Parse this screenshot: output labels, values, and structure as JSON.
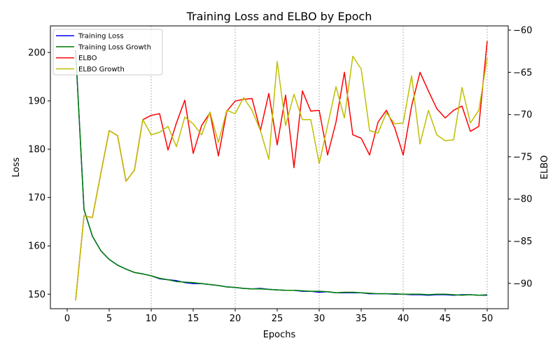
{
  "chart_data": {
    "type": "line",
    "title": "Training Loss and ELBO by Epoch",
    "xlabel": "Epochs",
    "ylabel": "Loss",
    "ylabel_right": "ELBO",
    "xlim": [
      -2.0,
      52.5
    ],
    "ylim": [
      147.0,
      205.5
    ],
    "ylim_right": [
      -93.0,
      -59.5
    ],
    "xticks": [
      0,
      5,
      10,
      15,
      20,
      25,
      30,
      35,
      40,
      45,
      50
    ],
    "yticks": [
      150,
      160,
      170,
      180,
      190,
      200
    ],
    "yticks_right": [
      -90,
      -85,
      -80,
      -75,
      -70,
      -65,
      -60
    ],
    "vgrid": [
      10,
      20,
      30,
      40,
      50
    ],
    "legend_position": "upper-left",
    "x": [
      1,
      2,
      3,
      4,
      5,
      6,
      7,
      8,
      9,
      10,
      11,
      12,
      13,
      14,
      15,
      16,
      17,
      18,
      19,
      20,
      21,
      22,
      23,
      24,
      25,
      26,
      27,
      28,
      29,
      30,
      31,
      32,
      33,
      34,
      35,
      36,
      37,
      38,
      39,
      40,
      41,
      42,
      43,
      44,
      45,
      46,
      47,
      48,
      49,
      50
    ],
    "series": [
      {
        "name": "Training Loss",
        "axis": "left",
        "color": "#0000ff",
        "values": [
          200.5,
          167.5,
          162.0,
          159.0,
          157.2,
          156.0,
          155.2,
          154.5,
          154.2,
          153.8,
          153.2,
          153.0,
          152.8,
          152.4,
          152.2,
          152.2,
          152.0,
          151.8,
          151.5,
          151.4,
          151.2,
          151.1,
          151.2,
          151.0,
          150.9,
          150.8,
          150.8,
          150.6,
          150.6,
          150.4,
          150.5,
          150.3,
          150.3,
          150.3,
          150.3,
          150.1,
          150.1,
          150.1,
          150.0,
          150.0,
          149.9,
          149.9,
          149.8,
          149.9,
          149.9,
          149.8,
          149.9,
          149.9,
          149.8,
          149.8
        ]
      },
      {
        "name": "Training Loss Growth",
        "axis": "left",
        "color": "#008000",
        "values": [
          200.5,
          167.5,
          162.0,
          159.0,
          157.2,
          156.0,
          155.2,
          154.5,
          154.2,
          153.8,
          153.3,
          153.0,
          152.6,
          152.5,
          152.4,
          152.2,
          152.0,
          151.8,
          151.5,
          151.4,
          151.2,
          151.1,
          151.1,
          151.0,
          150.9,
          150.8,
          150.8,
          150.7,
          150.6,
          150.6,
          150.5,
          150.3,
          150.4,
          150.4,
          150.3,
          150.2,
          150.1,
          150.1,
          150.1,
          150.0,
          150.0,
          150.0,
          149.9,
          150.0,
          150.0,
          149.9,
          149.8,
          149.9,
          149.8,
          149.9
        ]
      },
      {
        "name": "ELBO",
        "axis": "right",
        "color": "#ff0000",
        "values": [
          -92.0,
          -82.0,
          -82.2,
          -77.0,
          -71.9,
          -72.5,
          -77.9,
          -76.6,
          -70.6,
          -70.1,
          -69.9,
          -74.2,
          -71.0,
          -68.3,
          -74.6,
          -71.3,
          -69.8,
          -74.9,
          -69.6,
          -68.4,
          -68.2,
          -68.1,
          -71.9,
          -67.5,
          -73.6,
          -67.7,
          -76.3,
          -67.2,
          -69.6,
          -69.5,
          -74.8,
          -70.9,
          -65.0,
          -72.4,
          -72.8,
          -74.8,
          -70.9,
          -69.5,
          -71.6,
          -74.8,
          -69.0,
          -65.0,
          -67.2,
          -69.3,
          -70.4,
          -69.5,
          -69.0,
          -72.0,
          -71.4,
          -61.3
        ]
      },
      {
        "name": "ELBO Growth",
        "axis": "right",
        "color": "#bfbf00",
        "values": [
          -92.0,
          -82.0,
          -82.2,
          -77.0,
          -71.9,
          -72.5,
          -77.9,
          -76.6,
          -70.6,
          -72.4,
          -72.1,
          -71.4,
          -73.8,
          -70.3,
          -71.1,
          -72.4,
          -69.7,
          -73.3,
          -69.5,
          -69.9,
          -68.0,
          -69.5,
          -71.9,
          -75.3,
          -63.7,
          -71.3,
          -67.6,
          -70.6,
          -70.6,
          -75.8,
          -71.3,
          -66.7,
          -70.4,
          -63.1,
          -64.6,
          -71.9,
          -72.2,
          -69.8,
          -71.1,
          -71.0,
          -65.4,
          -73.5,
          -69.5,
          -72.4,
          -73.1,
          -73.0,
          -66.8,
          -71.0,
          -69.5,
          -63.3
        ]
      }
    ]
  }
}
